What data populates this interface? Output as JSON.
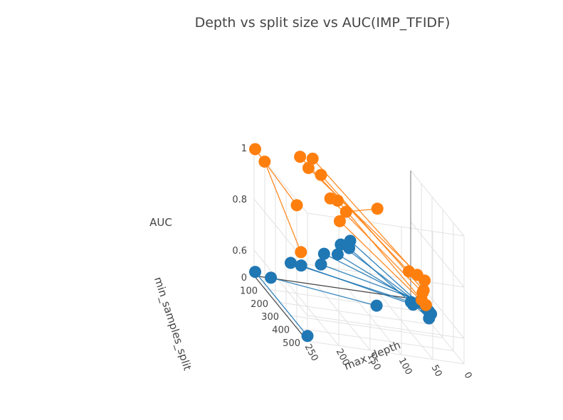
{
  "chart_data": {
    "type": "scatter3d",
    "title": "Depth vs split size vs AUC(IMP_TFIDF)",
    "xlabel": "max_depth",
    "ylabel": "min_samples_split",
    "zlabel": "AUC",
    "xlim": [
      0,
      250
    ],
    "ylim": [
      0,
      500
    ],
    "zlim": [
      0.5,
      1
    ],
    "xticks": [
      "0",
      "50",
      "100",
      "150",
      "200",
      "250"
    ],
    "yticks": [
      "0",
      "100",
      "200",
      "300",
      "400",
      "500"
    ],
    "zticks": [
      "0.6",
      "0.8",
      "1"
    ],
    "legend": "none",
    "series": [
      {
        "color": "#1f77b4",
        "mode": "lines+markers",
        "points": [
          {
            "x": 250,
            "y": 10,
            "z": 0.52
          },
          {
            "x": 250,
            "y": 500,
            "z": 0.52
          },
          {
            "x": 230,
            "y": 40,
            "z": 0.52
          },
          {
            "x": 80,
            "y": 150,
            "z": 0.52
          },
          {
            "x": 195,
            "y": 20,
            "z": 0.58
          },
          {
            "x": 20,
            "y": 120,
            "z": 0.54
          },
          {
            "x": 180,
            "y": 30,
            "z": 0.58
          },
          {
            "x": 20,
            "y": 140,
            "z": 0.54
          },
          {
            "x": 150,
            "y": 40,
            "z": 0.6
          },
          {
            "x": 5,
            "y": 120,
            "z": 0.55
          },
          {
            "x": 140,
            "y": 10,
            "z": 0.63
          },
          {
            "x": 5,
            "y": 140,
            "z": 0.55
          },
          {
            "x": 120,
            "y": 20,
            "z": 0.64
          },
          {
            "x": 5,
            "y": 180,
            "z": 0.55
          },
          {
            "x": 115,
            "y": 20,
            "z": 0.68
          },
          {
            "x": 5,
            "y": 200,
            "z": 0.55
          },
          {
            "x": 100,
            "y": 20,
            "z": 0.7
          },
          {
            "x": 5,
            "y": 220,
            "z": 0.55
          },
          {
            "x": 105,
            "y": 40,
            "z": 0.68
          },
          {
            "x": 15,
            "y": 260,
            "z": 0.55
          }
        ]
      },
      {
        "color": "#ff7f0e",
        "mode": "lines+markers",
        "points": [
          {
            "x": 250,
            "y": 10,
            "z": 1.0
          },
          {
            "x": 250,
            "y": 400,
            "z": 0.98
          },
          {
            "x": 240,
            "y": 40,
            "z": 0.97
          },
          {
            "x": 240,
            "y": 380,
            "z": 0.79
          },
          {
            "x": 180,
            "y": 20,
            "z": 1.0
          },
          {
            "x": 20,
            "y": 100,
            "z": 0.65
          },
          {
            "x": 160,
            "y": 20,
            "z": 1.0
          },
          {
            "x": 10,
            "y": 120,
            "z": 0.65
          },
          {
            "x": 170,
            "y": 40,
            "z": 0.97
          },
          {
            "x": 5,
            "y": 160,
            "z": 0.65
          },
          {
            "x": 150,
            "y": 40,
            "z": 0.95
          },
          {
            "x": 10,
            "y": 180,
            "z": 0.62
          },
          {
            "x": 130,
            "y": 10,
            "z": 0.85
          },
          {
            "x": 15,
            "y": 200,
            "z": 0.62
          },
          {
            "x": 120,
            "y": 20,
            "z": 0.85
          },
          {
            "x": 20,
            "y": 220,
            "z": 0.6
          },
          {
            "x": 110,
            "y": 40,
            "z": 0.82
          },
          {
            "x": 60,
            "y": 40,
            "z": 0.85
          },
          {
            "x": 120,
            "y": 40,
            "z": 0.78
          },
          {
            "x": 20,
            "y": 260,
            "z": 0.6
          }
        ]
      }
    ]
  }
}
